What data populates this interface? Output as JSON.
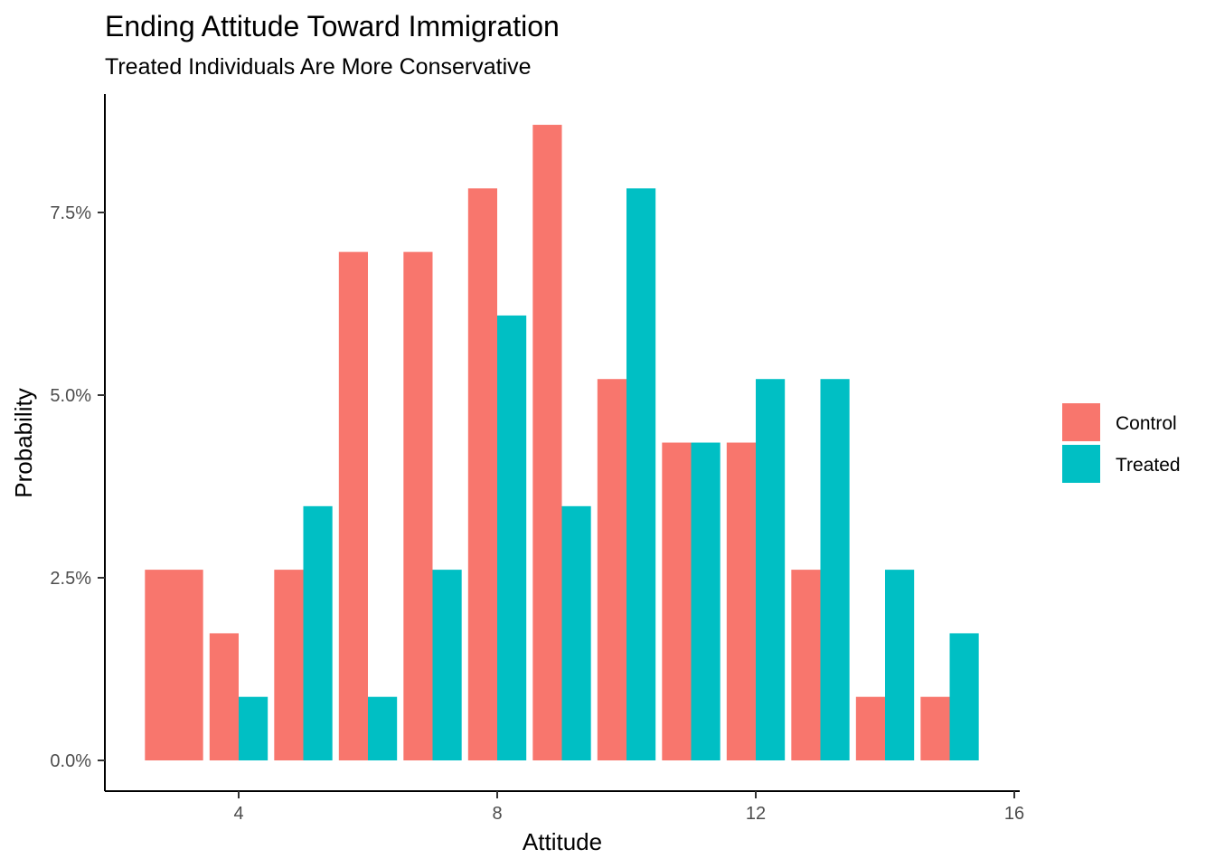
{
  "chart_data": {
    "type": "bar",
    "title": "Ending Attitude Toward Immigration",
    "subtitle": "Treated Individuals Are More Conservative",
    "xlabel": "Attitude",
    "ylabel": "Probability",
    "x_ticks": [
      "4",
      "8",
      "12",
      "16"
    ],
    "y_ticks": [
      "0.0%",
      "2.5%",
      "5.0%",
      "7.5%"
    ],
    "xlim": [
      2,
      16
    ],
    "ylim": [
      0,
      0.09
    ],
    "grid": false,
    "legend_position": "right",
    "colors": {
      "Control": "#F8766D",
      "Treated": "#00BFC4"
    },
    "categories": [
      3,
      4,
      5,
      6,
      7,
      8,
      9,
      10,
      11,
      12,
      13,
      14,
      15
    ],
    "series": [
      {
        "name": "Control",
        "color": "#F8766D",
        "values": [
          0.0261,
          0.0174,
          0.0261,
          0.0696,
          0.0696,
          0.0783,
          0.087,
          0.0522,
          0.0435,
          0.0435,
          0.0261,
          0.0087,
          0.0087
        ]
      },
      {
        "name": "Treated",
        "color": "#00BFC4",
        "values": [
          null,
          0.0087,
          0.0348,
          0.0087,
          0.0261,
          0.0609,
          0.0348,
          0.0783,
          0.0435,
          0.0522,
          0.0522,
          0.0261,
          0.0174
        ]
      }
    ]
  }
}
